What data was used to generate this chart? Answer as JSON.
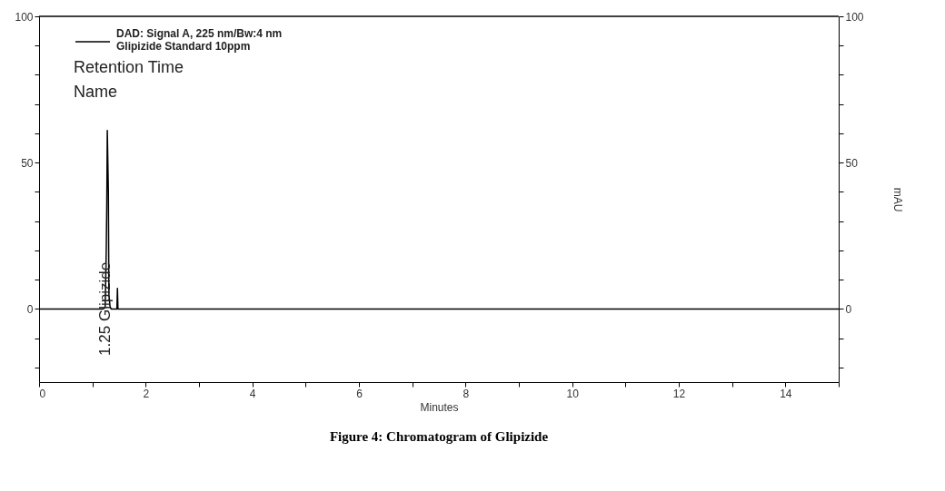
{
  "chart_data": {
    "type": "line",
    "title": "Figure 4: Chromatogram of Glipizide",
    "xlabel": "Minutes",
    "y2label": "mAU",
    "series": [
      {
        "name": "DAD: Signal A, 225 nm/Bw:4 nm\nGlipizide Standard 10ppm",
        "color": "#000000",
        "x": [
          0,
          1.2,
          1.24,
          1.26,
          1.27,
          1.28,
          1.3,
          1.31,
          1.33,
          1.35,
          1.46,
          1.47,
          1.48,
          15
        ],
        "values": [
          0,
          0,
          0.5,
          20,
          35,
          61,
          40,
          5,
          1,
          0,
          0,
          7,
          0,
          0
        ]
      }
    ],
    "annotations": [
      "Retention Time",
      "Name",
      {
        "text": "1.25 Glipizide",
        "x": 1.25,
        "y": 0
      }
    ],
    "xlim": [
      0,
      15
    ],
    "ylim": [
      -25,
      100
    ],
    "y2lim": [
      -25,
      100
    ],
    "xticks": [
      0,
      {
        "value": 1,
        "label": null
      },
      2,
      {
        "value": 3,
        "label": null
      },
      4,
      {
        "value": 5,
        "label": null
      },
      6,
      {
        "value": 7,
        "label": null
      },
      8,
      {
        "value": 9,
        "label": null
      },
      10,
      {
        "value": 11,
        "label": null
      },
      12,
      {
        "value": 13,
        "label": null
      },
      14,
      {
        "value": 15,
        "label": null
      }
    ],
    "yticks": [
      {
        "value": -20,
        "label": null
      },
      {
        "value": -10,
        "label": null
      },
      0,
      {
        "value": 10,
        "label": null
      },
      {
        "value": 20,
        "label": null
      },
      {
        "value": 30,
        "label": null
      },
      {
        "value": 40,
        "label": null
      },
      50,
      {
        "value": 60,
        "label": null
      },
      {
        "value": 70,
        "label": null
      },
      {
        "value": 80,
        "label": null
      },
      {
        "value": 90,
        "label": null
      },
      100
    ],
    "y2ticks": [
      {
        "value": -20,
        "label": null
      },
      {
        "value": -10,
        "label": null
      },
      0,
      {
        "value": 10,
        "label": null
      },
      {
        "value": 20,
        "label": null
      },
      {
        "value": 30,
        "label": null
      },
      {
        "value": 40,
        "label": null
      },
      50,
      {
        "value": 60,
        "label": null
      },
      {
        "value": 70,
        "label": null
      },
      {
        "value": 80,
        "label": null
      },
      {
        "value": 90,
        "label": null
      },
      100
    ],
    "grid": false,
    "legend": "top left",
    "line_style": "solid"
  }
}
